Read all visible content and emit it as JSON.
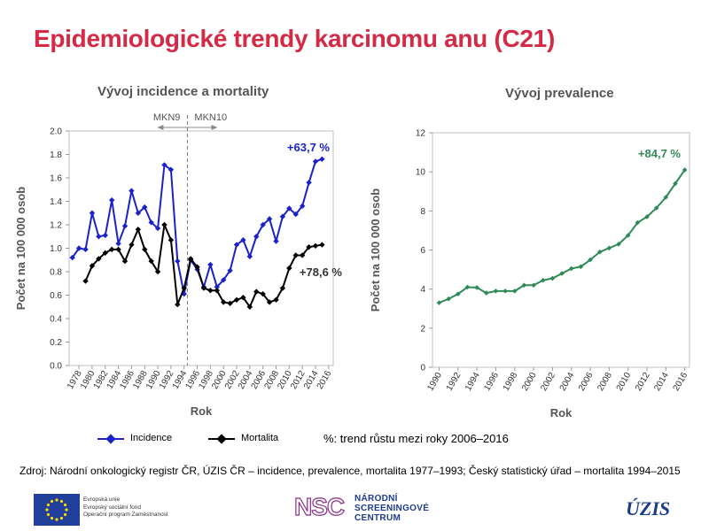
{
  "slide": {
    "title": "Epidemiologické trendy karcinomu anu (C21)"
  },
  "colors": {
    "title": "#d42a45",
    "incidence": "#1a22c8",
    "mortality": "#000000",
    "prevalence": "#2e8b57"
  },
  "chart_data": [
    {
      "type": "line",
      "title": "Vývoj incidence a mortality",
      "xlabel": "Rok",
      "ylabel": "Počet na 100 000 osob",
      "ylim": [
        0,
        2.0
      ],
      "yticks": [
        "0.0",
        "0.2",
        "0.4",
        "0.6",
        "0.8",
        "1.0",
        "1.2",
        "1.4",
        "1.6",
        "1.8",
        "2.0"
      ],
      "xticks": [
        "1978",
        "1980",
        "1982",
        "1984",
        "1986",
        "1988",
        "1990",
        "1992",
        "1994",
        "1996",
        "1998",
        "2000",
        "2002",
        "2004",
        "2006",
        "2008",
        "2010",
        "2012",
        "2014",
        "2016"
      ],
      "divider": {
        "x": 1994.5,
        "left_label": "MKN9",
        "right_label": "MKN10"
      },
      "series": [
        {
          "name": "Incidence",
          "x_start": 1977,
          "values": [
            0.92,
            1.0,
            0.99,
            1.3,
            1.1,
            1.11,
            1.41,
            1.04,
            1.19,
            1.49,
            1.3,
            1.35,
            1.22,
            1.17,
            1.71,
            1.67,
            0.89,
            0.61,
            0.9,
            0.82,
            0.67,
            0.86,
            0.67,
            0.73,
            0.81,
            1.03,
            1.07,
            0.93,
            1.1,
            1.2,
            1.25,
            1.06,
            1.27,
            1.34,
            1.29,
            1.36,
            1.56,
            1.74,
            1.76
          ],
          "annotation": "+63,7 %"
        },
        {
          "name": "Mortalita",
          "x_start": 1979,
          "values": [
            0.72,
            0.85,
            0.91,
            0.96,
            0.99,
            0.99,
            0.89,
            1.03,
            1.16,
            0.99,
            0.89,
            0.8,
            1.2,
            1.07,
            0.52,
            0.66,
            0.91,
            0.84,
            0.66,
            0.64,
            0.64,
            0.54,
            0.53,
            0.56,
            0.58,
            0.5,
            0.63,
            0.61,
            0.54,
            0.56,
            0.66,
            0.83,
            0.94,
            0.94,
            1.01,
            1.02,
            1.03
          ],
          "annotation": "+78,6 %"
        }
      ]
    },
    {
      "type": "line",
      "title": "Vývoj prevalence",
      "xlabel": "Rok",
      "ylabel": "Počet na 100 000 osob",
      "ylim": [
        0,
        12
      ],
      "yticks": [
        "0",
        "2",
        "4",
        "6",
        "8",
        "10",
        "12"
      ],
      "xticks": [
        "1990",
        "1992",
        "1994",
        "1996",
        "1998",
        "2000",
        "2002",
        "2004",
        "2006",
        "2008",
        "2010",
        "2012",
        "2014",
        "2016"
      ],
      "series": [
        {
          "name": "Prevalence",
          "x_start": 1990,
          "values": [
            3.3,
            3.5,
            3.75,
            4.1,
            4.08,
            3.8,
            3.9,
            3.9,
            3.9,
            4.2,
            4.2,
            4.45,
            4.55,
            4.8,
            5.05,
            5.15,
            5.5,
            5.9,
            6.1,
            6.3,
            6.75,
            7.4,
            7.7,
            8.15,
            8.7,
            9.4,
            10.1
          ],
          "annotation": "+84,7 %"
        }
      ]
    }
  ],
  "legend": {
    "note": "%: trend růstu mezi roky 2006–2016"
  },
  "footer": {
    "source": "Zdroj: Národní onkologický registr ČR, ÚZIS ČR – incidence, prevalence, mortalita 1977–1993; Český statistický úřad – mortalita 1994–2015",
    "eu_lines": [
      "Evropská unie",
      "Evropský sociální fond",
      "Operační program Zaměstnanost"
    ],
    "nsc_abbr": "NSC",
    "nsc_lines": [
      "NÁRODNÍ",
      "SCREENINGOVÉ",
      "CENTRUM"
    ],
    "uzis": "ÚZIS"
  }
}
